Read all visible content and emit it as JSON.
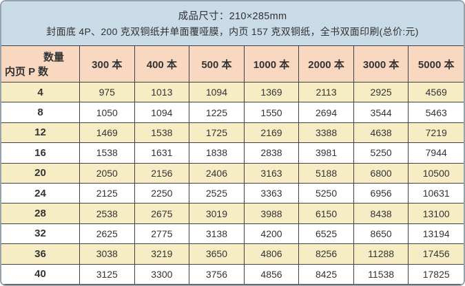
{
  "banner": {
    "line1": "成品尺寸：210×285mm",
    "line2": "封面底 4P、200 克双铜纸并单面覆哑膜，内页 157 克双铜纸，全书双面印刷(总价:元)"
  },
  "table": {
    "corner": {
      "quantity_label": "数量",
      "pages_label": "内页 P 数"
    },
    "columns": [
      "300 本",
      "400 本",
      "500 本",
      "1000 本",
      "2000 本",
      "3000 本",
      "5000 本"
    ],
    "rows": [
      {
        "pages": "4",
        "prices": [
          975,
          1013,
          1094,
          1369,
          2113,
          2925,
          4569
        ]
      },
      {
        "pages": "8",
        "prices": [
          1050,
          1094,
          1225,
          1550,
          2694,
          3544,
          5463
        ]
      },
      {
        "pages": "12",
        "prices": [
          1469,
          1538,
          1725,
          2169,
          3388,
          4638,
          7219
        ]
      },
      {
        "pages": "16",
        "prices": [
          1538,
          1631,
          1838,
          2838,
          3981,
          5250,
          7944
        ]
      },
      {
        "pages": "20",
        "prices": [
          2050,
          2156,
          2406,
          3163,
          5188,
          6800,
          10500
        ]
      },
      {
        "pages": "24",
        "prices": [
          2125,
          2250,
          2525,
          3363,
          5250,
          6956,
          10631
        ]
      },
      {
        "pages": "28",
        "prices": [
          2538,
          2675,
          3019,
          3988,
          6150,
          8438,
          13100
        ]
      },
      {
        "pages": "32",
        "prices": [
          2625,
          2775,
          3138,
          4200,
          6525,
          8650,
          13194
        ]
      },
      {
        "pages": "36",
        "prices": [
          3038,
          3219,
          3650,
          4806,
          8256,
          11288,
          17456
        ]
      },
      {
        "pages": "40",
        "prices": [
          3125,
          3300,
          3756,
          4856,
          8425,
          11538,
          17825
        ]
      }
    ]
  },
  "colors": {
    "banner_bg": "#c9dbe7",
    "header_bg": "#f9d8c2",
    "stripe_bg": "#f6edc5",
    "grid_line": "#3f3f3f",
    "outer_border": "#97a2ab",
    "text": "#333333"
  }
}
